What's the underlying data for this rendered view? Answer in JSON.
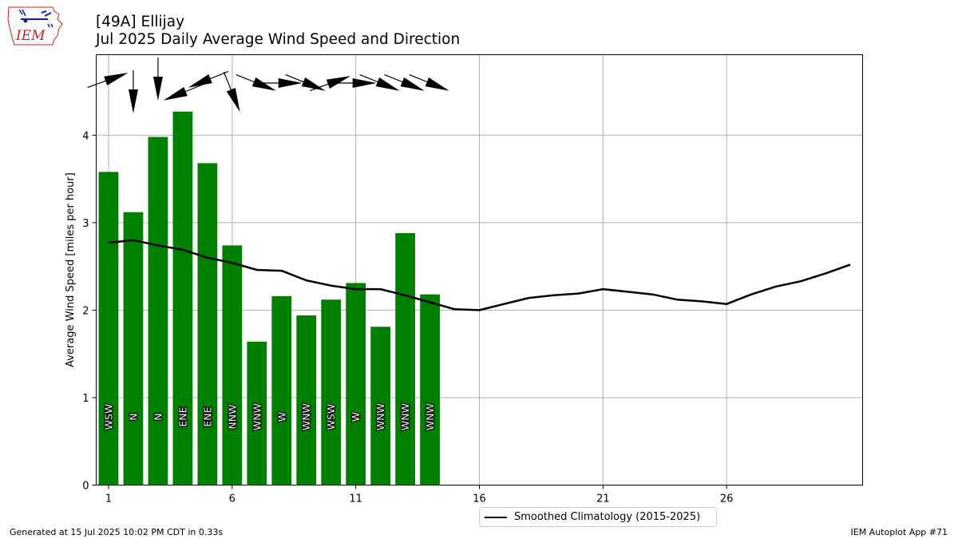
{
  "header": {
    "title_line1": "[49A] Ellijay",
    "title_line2": "Jul 2025 Daily Average Wind Speed and Direction",
    "logo_text": "IEM"
  },
  "footer": {
    "generated": "Generated at 15 Jul 2025 10:02 PM CDT in 0.33s",
    "app": "IEM Autoplot App #71"
  },
  "colors": {
    "bar": "#008000",
    "climatology": "#000000",
    "grid": "#b0b0b0",
    "logo_red": "#cc2222",
    "logo_blue": "#1a1aaa"
  },
  "chart_data": {
    "type": "bar",
    "ylabel": "Average Wind Speed [miles per hour]",
    "xlabel": "",
    "xlim": [
      0.5,
      31.5
    ],
    "ylim": [
      0,
      4.92
    ],
    "xticks": [
      1,
      6,
      11,
      16,
      21,
      26
    ],
    "yticks": [
      0,
      1,
      2,
      3,
      4
    ],
    "grid": true,
    "legend_position": "bottom-center",
    "bars": {
      "days": [
        1,
        2,
        3,
        4,
        5,
        6,
        7,
        8,
        9,
        10,
        11,
        12,
        13,
        14
      ],
      "values": [
        3.58,
        3.12,
        3.98,
        4.27,
        3.68,
        2.74,
        1.64,
        2.16,
        1.94,
        2.12,
        2.31,
        1.81,
        2.88,
        2.18
      ],
      "directions": [
        "WSW",
        "N",
        "N",
        "ENE",
        "ENE",
        "NNW",
        "WNW",
        "W",
        "WNW",
        "WSW",
        "W",
        "WNW",
        "WNW",
        "WNW"
      ],
      "barbs_direction_deg": [
        250,
        0,
        0,
        68,
        68,
        338,
        292,
        270,
        292,
        250,
        270,
        292,
        292,
        292
      ]
    },
    "series": [
      {
        "name": "Smoothed Climatology (2015-2025)",
        "x": [
          1,
          2,
          3,
          4,
          5,
          6,
          7,
          8,
          9,
          10,
          11,
          12,
          13,
          14,
          15,
          16,
          17,
          18,
          19,
          20,
          21,
          22,
          23,
          24,
          25,
          26,
          27,
          28,
          29,
          30,
          31
        ],
        "values": [
          2.77,
          2.8,
          2.74,
          2.69,
          2.6,
          2.54,
          2.46,
          2.45,
          2.34,
          2.28,
          2.24,
          2.24,
          2.17,
          2.09,
          2.01,
          2.0,
          2.07,
          2.14,
          2.17,
          2.19,
          2.24,
          2.21,
          2.18,
          2.12,
          2.1,
          2.07,
          2.18,
          2.27,
          2.33,
          2.42,
          2.52
        ]
      }
    ]
  }
}
